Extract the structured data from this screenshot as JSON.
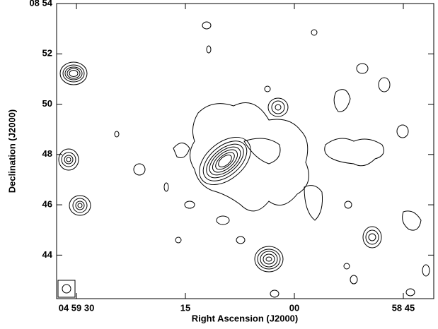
{
  "chart_data": {
    "type": "contour",
    "xlabel": "Right Ascension (J2000)",
    "ylabel": "Declination (J2000)",
    "xlim": [
      32.73,
      -19.19
    ],
    "xticks": [
      {
        "value": 30,
        "label": "04 59 30"
      },
      15,
      {
        "value": 0,
        "label": "00"
      },
      {
        "value": -15,
        "label": "58 45"
      }
    ],
    "ylim": [
      42.27,
      54
    ],
    "yticks": [
      44,
      46,
      48,
      50,
      52,
      {
        "value": 54,
        "label": "08 54"
      }
    ],
    "color": "#000000"
  }
}
